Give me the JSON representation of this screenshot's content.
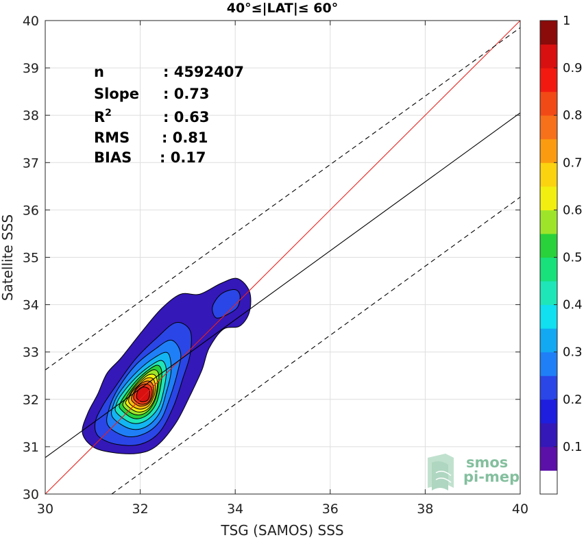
{
  "chart_data": {
    "type": "contour",
    "title": "40°≤|LAT|≤ 60°",
    "xlabel": "TSG (SAMOS) SSS",
    "ylabel": "Satellite SSS",
    "xlim": [
      30,
      40
    ],
    "ylim": [
      30,
      40
    ],
    "xticks": [
      30,
      32,
      34,
      36,
      38,
      40
    ],
    "yticks": [
      30,
      31,
      32,
      33,
      34,
      35,
      36,
      37,
      38,
      39,
      40
    ],
    "grid": true,
    "stats": [
      {
        "label": "n",
        "sep": ": ",
        "value": "4592407"
      },
      {
        "label": "Slope",
        "sep": ": ",
        "value": "0.73"
      },
      {
        "label": "R",
        "sup": "2",
        "sep": ": ",
        "value": "0.63"
      },
      {
        "label": "RMS",
        "sep": ": ",
        "value": "0.81"
      },
      {
        "label": "BIAS",
        "sep": ": ",
        "value": "0.17"
      }
    ],
    "lines": [
      {
        "name": "one-to-one",
        "style": "solid",
        "color": "#e8221e",
        "x": [
          30,
          40
        ],
        "y": [
          30,
          40
        ]
      },
      {
        "name": "regression",
        "style": "solid",
        "color": "#000000",
        "x": [
          30,
          40
        ],
        "y": [
          30.77,
          38.05
        ]
      },
      {
        "name": "upper-bound",
        "style": "dashed",
        "color": "#000000",
        "x": [
          30,
          40
        ],
        "y": [
          32.62,
          39.85
        ]
      },
      {
        "name": "lower-bound",
        "style": "dashed",
        "color": "#000000",
        "x": [
          31.4,
          40
        ],
        "y": [
          30,
          36.27
        ]
      }
    ],
    "density_center": {
      "x": 32.1,
      "y": 32.08
    },
    "contour_levels": [
      {
        "level": 0.05,
        "color": "#3418b8",
        "points": [
          [
            31.0,
            31.0
          ],
          [
            31.4,
            30.88
          ],
          [
            31.95,
            30.86
          ],
          [
            32.35,
            31.02
          ],
          [
            32.75,
            31.5
          ],
          [
            33.05,
            32.08
          ],
          [
            33.3,
            32.62
          ],
          [
            33.45,
            33.08
          ],
          [
            33.75,
            33.48
          ],
          [
            34.1,
            33.55
          ],
          [
            34.3,
            33.85
          ],
          [
            34.3,
            34.28
          ],
          [
            34.05,
            34.55
          ],
          [
            33.7,
            34.45
          ],
          [
            33.25,
            34.22
          ],
          [
            32.85,
            34.22
          ],
          [
            32.45,
            33.92
          ],
          [
            32.05,
            33.45
          ],
          [
            31.6,
            32.88
          ],
          [
            31.3,
            32.55
          ],
          [
            31.1,
            32.1
          ],
          [
            30.9,
            31.72
          ],
          [
            30.78,
            31.3
          ]
        ]
      },
      {
        "level": 0.05,
        "color": "#2a46e6",
        "points": [
          [
            33.6,
            33.72
          ],
          [
            33.85,
            33.8
          ],
          [
            34.05,
            33.95
          ],
          [
            34.1,
            34.2
          ],
          [
            33.98,
            34.32
          ],
          [
            33.7,
            34.22
          ],
          [
            33.52,
            33.95
          ]
        ]
      },
      {
        "level": 0.15,
        "color": "#2a46e6",
        "points": [
          [
            31.12,
            31.22
          ],
          [
            31.5,
            31.05
          ],
          [
            32.0,
            31.05
          ],
          [
            32.4,
            31.3
          ],
          [
            32.7,
            31.85
          ],
          [
            32.9,
            32.45
          ],
          [
            33.05,
            32.95
          ],
          [
            33.05,
            33.45
          ],
          [
            32.75,
            33.62
          ],
          [
            32.35,
            33.3
          ],
          [
            31.9,
            32.85
          ],
          [
            31.5,
            32.3
          ],
          [
            31.2,
            31.85
          ],
          [
            31.05,
            31.5
          ]
        ]
      },
      {
        "level": 0.25,
        "color": "#1f7ff7",
        "points": [
          [
            31.32,
            31.45
          ],
          [
            31.7,
            31.22
          ],
          [
            32.1,
            31.28
          ],
          [
            32.42,
            31.55
          ],
          [
            32.62,
            32.02
          ],
          [
            32.78,
            32.55
          ],
          [
            32.85,
            32.98
          ],
          [
            32.65,
            33.25
          ],
          [
            32.3,
            33.05
          ],
          [
            31.9,
            32.72
          ],
          [
            31.55,
            32.25
          ],
          [
            31.35,
            31.82
          ]
        ]
      },
      {
        "level": 0.35,
        "color": "#13b6f2",
        "points": [
          [
            31.42,
            31.62
          ],
          [
            31.78,
            31.38
          ],
          [
            32.12,
            31.42
          ],
          [
            32.4,
            31.7
          ],
          [
            32.55,
            32.15
          ],
          [
            32.65,
            32.6
          ],
          [
            32.58,
            32.98
          ],
          [
            32.3,
            32.88
          ],
          [
            31.95,
            32.6
          ],
          [
            31.6,
            32.2
          ],
          [
            31.44,
            31.9
          ]
        ]
      },
      {
        "level": 0.45,
        "color": "#1fe6b8",
        "points": [
          [
            31.5,
            31.72
          ],
          [
            31.82,
            31.5
          ],
          [
            32.12,
            31.55
          ],
          [
            32.38,
            31.82
          ],
          [
            32.5,
            32.22
          ],
          [
            32.55,
            32.62
          ],
          [
            32.45,
            32.82
          ],
          [
            32.2,
            32.7
          ],
          [
            31.9,
            32.45
          ],
          [
            31.62,
            32.12
          ],
          [
            31.5,
            31.9
          ]
        ]
      },
      {
        "level": 0.55,
        "color": "#29d13a",
        "points": [
          [
            31.58,
            31.8
          ],
          [
            31.85,
            31.6
          ],
          [
            32.12,
            31.65
          ],
          [
            32.33,
            31.9
          ],
          [
            32.43,
            32.28
          ],
          [
            32.45,
            32.6
          ],
          [
            32.35,
            32.72
          ],
          [
            32.12,
            32.58
          ],
          [
            31.88,
            32.35
          ],
          [
            31.66,
            32.06
          ],
          [
            31.58,
            31.92
          ]
        ]
      },
      {
        "level": 0.6,
        "color": "#9ee52a",
        "points": [
          [
            31.64,
            31.86
          ],
          [
            31.88,
            31.68
          ],
          [
            32.12,
            31.72
          ],
          [
            32.3,
            31.96
          ],
          [
            32.38,
            32.3
          ],
          [
            32.38,
            32.56
          ],
          [
            32.26,
            32.62
          ],
          [
            32.06,
            32.48
          ],
          [
            31.86,
            32.26
          ],
          [
            31.7,
            32.02
          ]
        ]
      },
      {
        "level": 0.65,
        "color": "#f2ef10",
        "points": [
          [
            31.7,
            31.9
          ],
          [
            31.92,
            31.74
          ],
          [
            32.14,
            31.78
          ],
          [
            32.3,
            32.0
          ],
          [
            32.36,
            32.3
          ],
          [
            32.32,
            32.5
          ],
          [
            32.18,
            32.52
          ],
          [
            32.0,
            32.38
          ],
          [
            31.84,
            32.2
          ],
          [
            31.74,
            32.02
          ]
        ]
      },
      {
        "level": 0.7,
        "color": "#fbb90f",
        "points": [
          [
            31.76,
            31.94
          ],
          [
            31.95,
            31.8
          ],
          [
            32.15,
            31.84
          ],
          [
            32.28,
            32.04
          ],
          [
            32.32,
            32.28
          ],
          [
            32.26,
            32.44
          ],
          [
            32.12,
            32.44
          ],
          [
            31.96,
            32.3
          ],
          [
            31.82,
            32.14
          ]
        ]
      },
      {
        "level": 0.8,
        "color": "#f7701a",
        "points": [
          [
            31.82,
            31.98
          ],
          [
            31.98,
            31.86
          ],
          [
            32.16,
            31.9
          ],
          [
            32.26,
            32.06
          ],
          [
            32.28,
            32.26
          ],
          [
            32.2,
            32.38
          ],
          [
            32.06,
            32.36
          ],
          [
            31.92,
            32.24
          ],
          [
            31.84,
            32.1
          ]
        ]
      },
      {
        "level": 0.85,
        "color": "#f23a16",
        "points": [
          [
            31.87,
            32.0
          ],
          [
            32.0,
            31.9
          ],
          [
            32.16,
            31.93
          ],
          [
            32.24,
            32.08
          ],
          [
            32.24,
            32.24
          ],
          [
            32.15,
            32.32
          ],
          [
            32.02,
            32.3
          ],
          [
            31.91,
            32.2
          ],
          [
            31.87,
            32.1
          ]
        ]
      },
      {
        "level": 0.92,
        "color": "#d8100f",
        "points": [
          [
            31.93,
            32.02
          ],
          [
            32.03,
            31.95
          ],
          [
            32.15,
            31.98
          ],
          [
            32.2,
            32.1
          ],
          [
            32.18,
            32.22
          ],
          [
            32.08,
            32.26
          ],
          [
            31.98,
            32.22
          ],
          [
            31.93,
            32.12
          ]
        ]
      }
    ],
    "colorbar": {
      "ticks": [
        0.1,
        0.2,
        0.3,
        0.4,
        0.5,
        0.6,
        0.7,
        0.8,
        0.9,
        1
      ],
      "tick_labels": [
        "0.1",
        "0.2",
        "0.3",
        "0.4",
        "0.5",
        "0.6",
        "0.7",
        "0.8",
        "0.9",
        "1"
      ],
      "range": [
        0,
        1
      ],
      "bands": [
        {
          "from": 0.0,
          "to": 0.05,
          "color": "#ffffff"
        },
        {
          "from": 0.05,
          "to": 0.1,
          "color": "#5b10a8"
        },
        {
          "from": 0.1,
          "to": 0.15,
          "color": "#3418b8"
        },
        {
          "from": 0.15,
          "to": 0.2,
          "color": "#1e1ede"
        },
        {
          "from": 0.2,
          "to": 0.25,
          "color": "#2a46e6"
        },
        {
          "from": 0.25,
          "to": 0.3,
          "color": "#1f7ff7"
        },
        {
          "from": 0.3,
          "to": 0.35,
          "color": "#13a8f2"
        },
        {
          "from": 0.35,
          "to": 0.4,
          "color": "#10e0f0"
        },
        {
          "from": 0.4,
          "to": 0.45,
          "color": "#1fe6b8"
        },
        {
          "from": 0.45,
          "to": 0.5,
          "color": "#18e07a"
        },
        {
          "from": 0.5,
          "to": 0.55,
          "color": "#29d13a"
        },
        {
          "from": 0.55,
          "to": 0.6,
          "color": "#9ee52a"
        },
        {
          "from": 0.6,
          "to": 0.65,
          "color": "#f2ef10"
        },
        {
          "from": 0.65,
          "to": 0.7,
          "color": "#fbd30f"
        },
        {
          "from": 0.7,
          "to": 0.75,
          "color": "#fb9c10"
        },
        {
          "from": 0.75,
          "to": 0.8,
          "color": "#f7701a"
        },
        {
          "from": 0.8,
          "to": 0.85,
          "color": "#f24a16"
        },
        {
          "from": 0.85,
          "to": 0.9,
          "color": "#f21a10"
        },
        {
          "from": 0.9,
          "to": 0.95,
          "color": "#d8100f"
        },
        {
          "from": 0.95,
          "to": 1.0,
          "color": "#8b0a0a"
        }
      ]
    }
  },
  "watermark": {
    "line1": "smos",
    "line2": "pi-mep",
    "color": "#6fb58e"
  }
}
